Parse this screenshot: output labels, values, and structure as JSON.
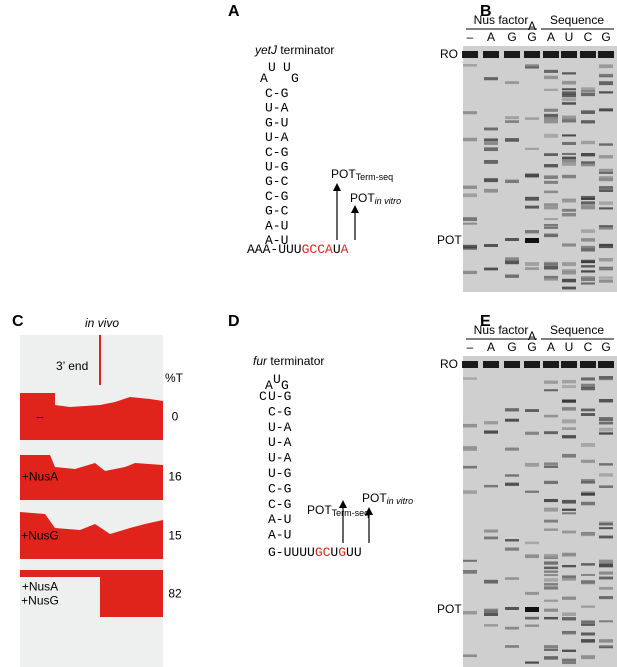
{
  "panel_a": {
    "label": "A",
    "name_italic": "yetJ",
    "name_rest": " terminator",
    "loop": [
      "U",
      "U",
      "A",
      "G"
    ],
    "stem": [
      "C-G",
      "U-A",
      "G-U",
      "U-A",
      "C-G",
      "U-G",
      "G-C",
      "C-G",
      "G-C",
      "A-U",
      "A-U"
    ],
    "base": [
      {
        "text": "AAA-UUU",
        "red": false
      },
      {
        "text": "GCCA",
        "red": true
      },
      {
        "text": "U",
        "red": false
      },
      {
        "text": "A",
        "red": true
      }
    ],
    "pot_term_seq": {
      "main": "POT",
      "sub": "Term-seq"
    },
    "pot_in_vitro": {
      "main": "POT",
      "sub": "in vitro"
    }
  },
  "panel_b": {
    "label": "B",
    "groups": [
      "Nus factor",
      "Sequence"
    ],
    "lanes": [
      "–",
      "A",
      "G",
      [
        "A",
        "G"
      ],
      "A",
      "U",
      "C",
      "G"
    ],
    "ro": "RO",
    "pot": "POT"
  },
  "panel_c": {
    "label": "C",
    "condition": "in vivo",
    "end_label": "3’ end",
    "pct_header": "%T",
    "rows": [
      {
        "labels": [
          "–"
        ],
        "pct": 0
      },
      {
        "labels": [
          "+NusA"
        ],
        "pct": 16
      },
      {
        "labels": [
          "+NusG"
        ],
        "pct": 15
      },
      {
        "labels": [
          "+NusA",
          "+NusG"
        ],
        "pct": 82
      }
    ]
  },
  "panel_d": {
    "label": "D",
    "name_italic": "fur",
    "name_rest": " terminator",
    "loop": [
      "A",
      "U",
      "G",
      "C"
    ],
    "stem": [
      "U-G",
      "C-G",
      "U-A",
      "U-A",
      "U-A",
      "U-G",
      "C-G",
      "C-G",
      "A-U",
      "A-U"
    ],
    "base": [
      {
        "text": "G-UUUU",
        "red": false
      },
      {
        "text": "GC",
        "red": true
      },
      {
        "text": "U",
        "red": false
      },
      {
        "text": "G",
        "red": true
      },
      {
        "text": "UU",
        "red": false
      }
    ],
    "pot_term_seq": {
      "main": "POT",
      "sub": "Term-seq"
    },
    "pot_in_vitro": {
      "main": "POT",
      "sub": "in vitro"
    }
  },
  "panel_e": {
    "label": "E",
    "groups": [
      "Nus factor",
      "Sequence"
    ],
    "lanes": [
      "–",
      "A",
      "G",
      [
        "A",
        "G"
      ],
      "A",
      "U",
      "C",
      "G"
    ],
    "ro": "RO",
    "pot": "POT"
  }
}
